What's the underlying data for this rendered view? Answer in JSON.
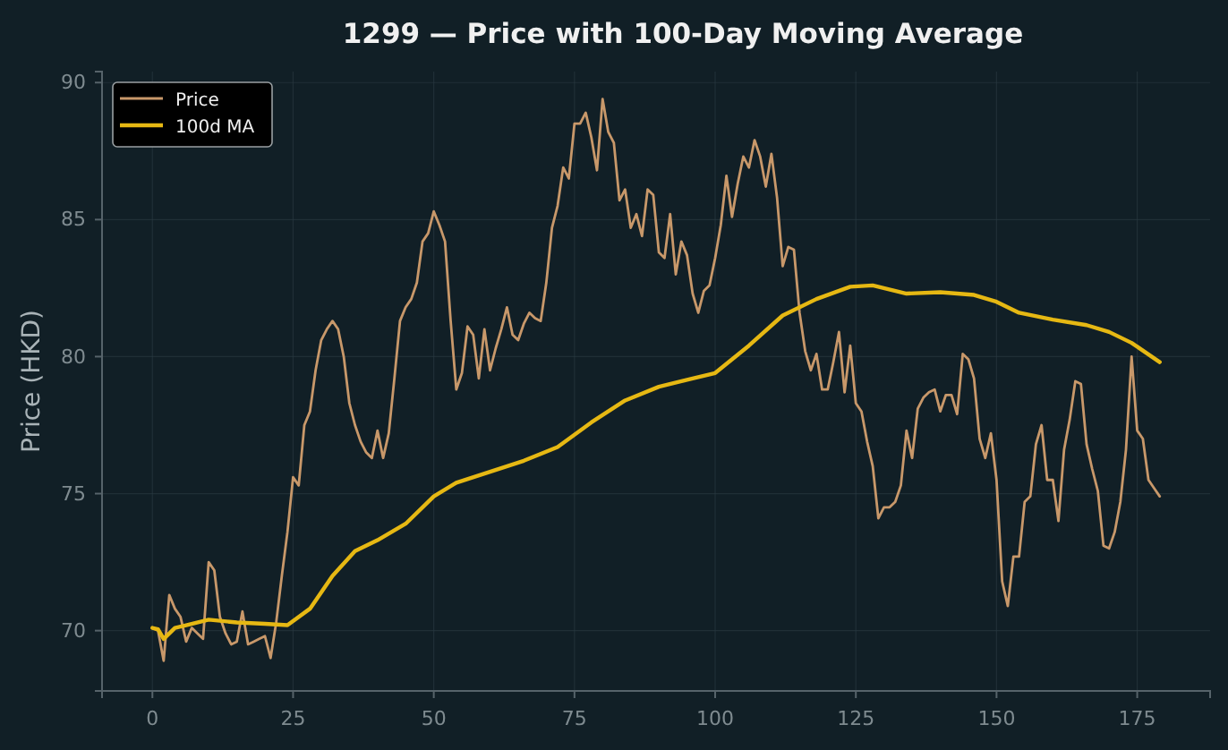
{
  "chart_data": {
    "type": "line",
    "title": "1299 — Price with 100-Day Moving Average",
    "ylabel": "Price (HKD)",
    "xlim": [
      -8.95,
      187.95
    ],
    "xticks": [
      0,
      25,
      50,
      75,
      100,
      125,
      150,
      175
    ],
    "ylim": [
      67.8,
      90.4
    ],
    "yticks": [
      70,
      75,
      80,
      85,
      90
    ],
    "grid": true,
    "legend": "top left",
    "line_style": "solid",
    "marker": "none",
    "series": [
      {
        "name": "Price",
        "color": "#c8986a",
        "x": [
          0,
          1,
          2,
          3,
          4,
          5,
          6,
          7,
          8,
          9,
          10,
          11,
          12,
          13,
          14,
          15,
          16,
          17,
          18,
          19,
          20,
          21,
          22,
          23,
          24,
          25,
          26,
          27,
          28,
          29,
          30,
          31,
          32,
          33,
          34,
          35,
          36,
          37,
          38,
          39,
          40,
          41,
          42,
          43,
          44,
          45,
          46,
          47,
          48,
          49,
          50,
          51,
          52,
          53,
          54,
          55,
          56,
          57,
          58,
          59,
          60,
          61,
          62,
          63,
          64,
          65,
          66,
          67,
          68,
          69,
          70,
          71,
          72,
          73,
          74,
          75,
          76,
          77,
          78,
          79,
          80,
          81,
          82,
          83,
          84,
          85,
          86,
          87,
          88,
          89,
          90,
          91,
          92,
          93,
          94,
          95,
          96,
          97,
          98,
          99,
          100,
          101,
          102,
          103,
          104,
          105,
          106,
          107,
          108,
          109,
          110,
          111,
          112,
          113,
          114,
          115,
          116,
          117,
          118,
          119,
          120,
          121,
          122,
          123,
          124,
          125,
          126,
          127,
          128,
          129,
          130,
          131,
          132,
          133,
          134,
          135,
          136,
          137,
          138,
          139,
          140,
          141,
          142,
          143,
          144,
          145,
          146,
          147,
          148,
          149,
          150,
          151,
          152,
          153,
          154,
          155,
          156,
          157,
          158,
          159,
          160,
          161,
          162,
          163,
          164,
          165,
          166,
          167,
          168,
          169,
          170,
          171,
          172,
          173,
          174,
          175,
          176,
          177,
          178,
          179
        ],
        "values": [
          70.1,
          70,
          68.9,
          71.3,
          70.8,
          70.5,
          69.6,
          70.1,
          69.9,
          69.7,
          72.5,
          72.2,
          70.5,
          69.9,
          69.5,
          69.6,
          70.7,
          69.5,
          69.6,
          69.7,
          69.8,
          69,
          70.3,
          72,
          73.6,
          75.6,
          75.3,
          77.5,
          78,
          79.5,
          80.6,
          81,
          81.3,
          81,
          80,
          78.3,
          77.5,
          76.9,
          76.5,
          76.3,
          77.3,
          76.3,
          77.2,
          79.2,
          81.3,
          81.8,
          82.1,
          82.7,
          84.2,
          84.5,
          85.3,
          84.8,
          84.2,
          81.3,
          78.8,
          79.4,
          81.1,
          80.8,
          79.2,
          81,
          79.5,
          80.3,
          81,
          81.8,
          80.8,
          80.6,
          81.2,
          81.6,
          81.4,
          81.3,
          82.7,
          84.7,
          85.5,
          86.9,
          86.5,
          88.5,
          88.5,
          88.9,
          88,
          86.8,
          89.4,
          88.2,
          87.8,
          85.7,
          86.1,
          84.7,
          85.2,
          84.4,
          86.1,
          85.9,
          83.8,
          83.6,
          85.2,
          83,
          84.2,
          83.7,
          82.3,
          81.6,
          82.4,
          82.6,
          83.6,
          84.8,
          86.6,
          85.1,
          86.3,
          87.3,
          86.9,
          87.9,
          87.3,
          86.2,
          87.4,
          85.8,
          83.3,
          84,
          83.9,
          81.6,
          80.2,
          79.5,
          80.1,
          78.8,
          78.8,
          79.8,
          80.9,
          78.7,
          80.4,
          78.3,
          78,
          76.9,
          76,
          74.1,
          74.5,
          74.5,
          74.7,
          75.3,
          77.3,
          76.3,
          78.1,
          78.5,
          78.7,
          78.8,
          78,
          78.6,
          78.6,
          77.9,
          80.1,
          79.9,
          79.2,
          77,
          76.3,
          77.2,
          75.5,
          71.8,
          70.9,
          72.7,
          72.7,
          74.7,
          74.9,
          76.8,
          77.5,
          75.5,
          75.5,
          74,
          76.6,
          77.7,
          79.1,
          79,
          76.8,
          75.9,
          75.1,
          73.1,
          73,
          73.6,
          74.7,
          76.6,
          80,
          77.3,
          77,
          75.5,
          75.2,
          74.9
        ]
      },
      {
        "name": "100d MA",
        "color": "#e6b813",
        "x": [
          0,
          1,
          2,
          4,
          6,
          10,
          15,
          20,
          24,
          28,
          32,
          36,
          40,
          45,
          50,
          54,
          60,
          66,
          72,
          78,
          84,
          90,
          96,
          100,
          106,
          112,
          118,
          124,
          128,
          134,
          140,
          146,
          150,
          154,
          160,
          166,
          170,
          174,
          179
        ],
        "values": [
          70.1,
          70.05,
          69.7,
          70.1,
          70.2,
          70.4,
          70.3,
          70.25,
          70.2,
          70.8,
          72,
          72.9,
          73.3,
          73.9,
          74.9,
          75.4,
          75.8,
          76.2,
          76.7,
          77.6,
          78.4,
          78.9,
          79.2,
          79.4,
          80.4,
          81.5,
          82.1,
          82.55,
          82.6,
          82.3,
          82.35,
          82.25,
          82,
          81.6,
          81.35,
          81.15,
          80.9,
          80.5,
          79.8
        ]
      }
    ]
  }
}
